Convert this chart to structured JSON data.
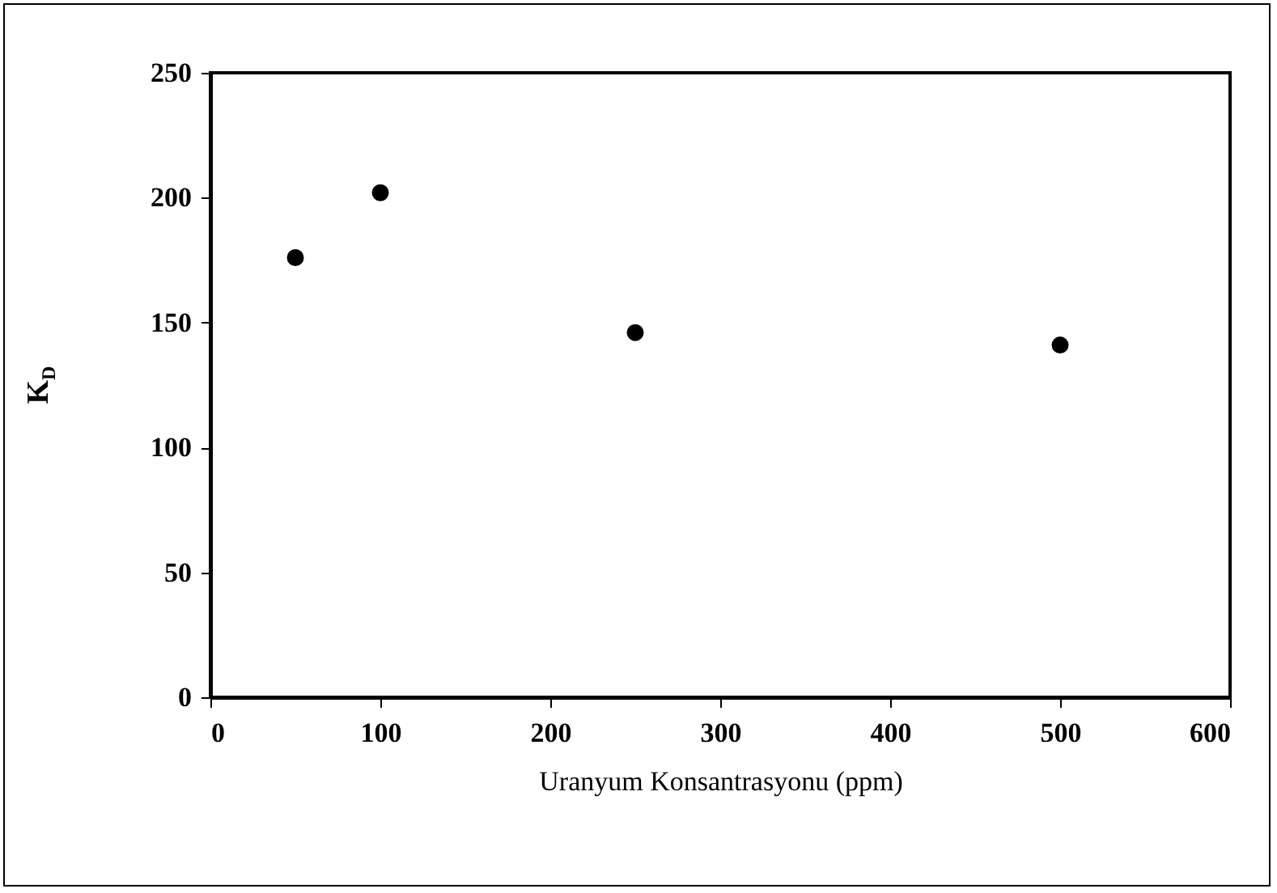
{
  "chart_data": {
    "type": "scatter",
    "xlabel": "Uranyum Konsantrasyonu (ppm)",
    "ylabel": "K$_{D}$",
    "x": [
      50,
      100,
      250,
      500
    ],
    "values": [
      176,
      202,
      146,
      141
    ],
    "color": "#000000",
    "marker": "circle",
    "grid": false,
    "xlim": [
      0,
      600
    ],
    "xticks": [
      0,
      100,
      200,
      300,
      400,
      500,
      600
    ],
    "ylim": [
      0,
      250
    ],
    "yticks": [
      0,
      50,
      100,
      150,
      200,
      250
    ]
  }
}
